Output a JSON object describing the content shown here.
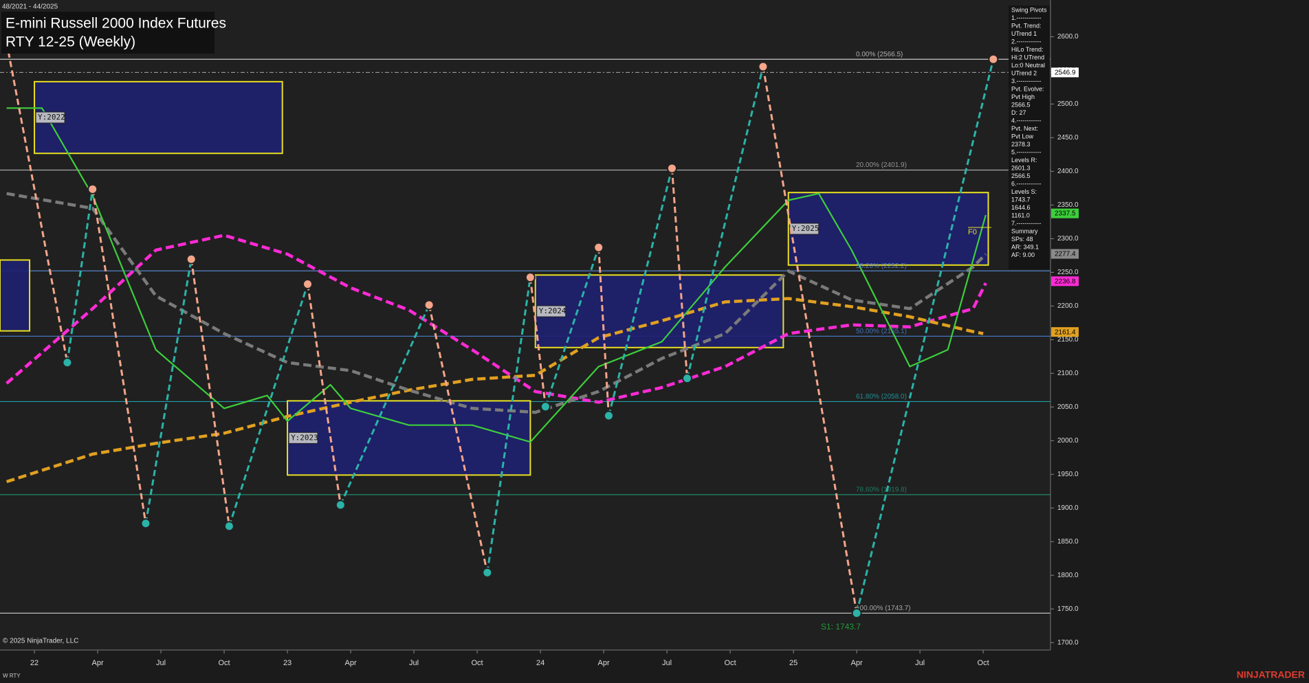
{
  "chart_data": {
    "type": "line",
    "date_range": "48/2021 - 44/2025",
    "title": "E-mini Russell 2000 Index Futures",
    "subtitle": "RTY 12-25 (Weekly)",
    "xlim": [
      2021.864,
      2026.016
    ],
    "xticks": [
      {
        "value": 2022,
        "label": "22"
      },
      {
        "value": 2022.25,
        "label": "Apr"
      },
      {
        "value": 2022.5,
        "label": "Jul"
      },
      {
        "value": 2022.75,
        "label": "Oct"
      },
      {
        "value": 2023,
        "label": "23"
      },
      {
        "value": 2023.25,
        "label": "Apr"
      },
      {
        "value": 2023.5,
        "label": "Jul"
      },
      {
        "value": 2023.75,
        "label": "Oct"
      },
      {
        "value": 2024,
        "label": "24"
      },
      {
        "value": 2024.25,
        "label": "Apr"
      },
      {
        "value": 2024.5,
        "label": "Jul"
      },
      {
        "value": 2024.75,
        "label": "Oct"
      },
      {
        "value": 2025,
        "label": "25"
      },
      {
        "value": 2025.25,
        "label": "Apr"
      },
      {
        "value": 2025.5,
        "label": "Jul"
      },
      {
        "value": 2025.75,
        "label": "Oct"
      }
    ],
    "ylim": [
      1689,
      2654.5
    ],
    "yticks": [
      {
        "value": 1700,
        "label": "1700.0"
      },
      {
        "value": 1750,
        "label": "1750.0"
      },
      {
        "value": 1800,
        "label": "1800.0"
      },
      {
        "value": 1850,
        "label": "1850.0"
      },
      {
        "value": 1900,
        "label": "1900.0"
      },
      {
        "value": 1950,
        "label": "1950.0"
      },
      {
        "value": 2000,
        "label": "2000.0"
      },
      {
        "value": 2050,
        "label": "2050.0"
      },
      {
        "value": 2100,
        "label": "2100.0"
      },
      {
        "value": 2150,
        "label": "2150.0"
      },
      {
        "value": 2200,
        "label": "2200.0"
      },
      {
        "value": 2250,
        "label": "2250.0"
      },
      {
        "value": 2300,
        "label": "2300.0"
      },
      {
        "value": 2350,
        "label": "2350.0"
      },
      {
        "value": 2400,
        "label": "2400.0"
      },
      {
        "value": 2450,
        "label": "2450.0"
      },
      {
        "value": 2500,
        "label": "2500.0"
      },
      {
        "value": 2550,
        "label": "2550.0"
      },
      {
        "value": 2600,
        "label": "2600.0"
      }
    ],
    "fib_levels": [
      {
        "label": "0.00% (2566.5)",
        "value": 2566.5,
        "color": "#c8c8c8"
      },
      {
        "label": "20.00% (2401.9)",
        "value": 2401.9,
        "color": "#a8a8a8"
      },
      {
        "label": "38.20% (2252.2)",
        "value": 2252.2,
        "color": "#5b8fdc"
      },
      {
        "label": "50.00% (2155.1)",
        "value": 2155.1,
        "color": "#4a7fd0"
      },
      {
        "label": "61.80% (2058.0)",
        "value": 2058.0,
        "color": "#1fa0a8"
      },
      {
        "label": "78.60% (1919.8)",
        "value": 1919.8,
        "color": "#1e8a6a"
      },
      {
        "label": "100.00% (1743.7)",
        "value": 1743.7,
        "color": "#bdbdbd"
      }
    ],
    "year_boxes": [
      {
        "x": [
          2021.864,
          2021.981
        ],
        "values": [
          2268.3,
          2163.0
        ]
      },
      {
        "label": "Y:2022",
        "x": [
          2022.0,
          2022.98
        ],
        "values": [
          2533.2,
          2426.7
        ]
      },
      {
        "label": "Y:2023",
        "x": [
          2023.0,
          2023.96
        ],
        "values": [
          2059.1,
          1948.9
        ]
      },
      {
        "label": "Y:2024",
        "x": [
          2023.98,
          2024.96
        ],
        "values": [
          2246.0,
          2138.3
        ]
      },
      {
        "label": "Y:2025",
        "x": [
          2024.98,
          2025.77
        ],
        "values": [
          2368.5,
          2260.8
        ]
      }
    ],
    "series": [
      {
        "color": "#ff2bd6",
        "dash": true,
        "x": [
          2021.89,
          2022.23,
          2022.48,
          2022.75,
          2023.0,
          2023.25,
          2023.48,
          2023.73,
          2023.98,
          2024.23,
          2024.48,
          2024.73,
          2024.98,
          2025.23,
          2025.46,
          2025.71,
          2025.76
        ],
        "values": [
          2085,
          2196,
          2283,
          2305,
          2277,
          2227,
          2194,
          2135,
          2073,
          2057,
          2079,
          2110,
          2159,
          2172,
          2169,
          2196,
          2234
        ]
      },
      {
        "color": "#e0a020",
        "dash": true,
        "x": [
          2021.89,
          2022.23,
          2022.48,
          2022.75,
          2023.0,
          2023.25,
          2023.48,
          2023.73,
          2023.98,
          2024.23,
          2024.48,
          2024.73,
          2024.98,
          2025.23,
          2025.46,
          2025.71,
          2025.75
        ],
        "values": [
          1939,
          1980,
          1996,
          2011,
          2036,
          2057,
          2075,
          2091,
          2097,
          2153,
          2178,
          2206,
          2211,
          2199,
          2184,
          2162,
          2159
        ]
      },
      {
        "color": "#7a7a7a",
        "dash": true,
        "x": [
          2021.89,
          2022.23,
          2022.48,
          2022.75,
          2023.0,
          2023.25,
          2023.48,
          2023.73,
          2023.98,
          2024.23,
          2024.48,
          2024.73,
          2024.98,
          2025.23,
          2025.46,
          2025.71,
          2025.76
        ],
        "values": [
          2367,
          2345,
          2215,
          2159,
          2116,
          2104,
          2075,
          2048,
          2042,
          2073,
          2122,
          2159,
          2252,
          2209,
          2196,
          2258,
          2277
        ]
      },
      {
        "color": "#3ccf3c",
        "dash": false,
        "x": [
          2021.89,
          2022.03,
          2022.23,
          2022.48,
          2022.75,
          2022.92,
          2023.0,
          2023.17,
          2023.25,
          2023.48,
          2023.73,
          2023.96,
          2024.23,
          2024.48,
          2024.73,
          2024.98,
          2025.1,
          2025.23,
          2025.46,
          2025.61,
          2025.76
        ],
        "values": [
          2494,
          2494,
          2364,
          2135,
          2048,
          2067,
          2029,
          2083,
          2048,
          2023,
          2023,
          1998,
          2110,
          2147,
          2258,
          2357,
          2367,
          2283,
          2110,
          2135,
          2335
        ]
      }
    ],
    "swing_pivots": {
      "x": [
        2021.89,
        2022.13,
        2022.23,
        2022.44,
        2022.62,
        2022.77,
        2023.08,
        2023.21,
        2023.56,
        2023.79,
        2023.96,
        2024.02,
        2024.23,
        2024.27,
        2024.52,
        2024.58,
        2024.88,
        2025.25,
        2025.79
      ],
      "values": [
        2592,
        2116,
        2373.5,
        1877,
        2269.5,
        1873,
        2232.5,
        1904.5,
        2201.5,
        1804,
        2242.5,
        2050.5,
        2287,
        2037,
        2404.5,
        2092.5,
        2555.5,
        1743.7,
        2566.5
      ],
      "up_color": "#2bb3a8",
      "down_color": "#f4a58a"
    },
    "price_markers": [
      {
        "value": 2546.9,
        "color": "#ffffff"
      },
      {
        "value": 2337.5,
        "color": "#3ccf3c"
      },
      {
        "value": 2277.4,
        "color": "#8a8a8a"
      },
      {
        "value": 2236.8,
        "color": "#ff2bd6"
      },
      {
        "value": 2161.4,
        "color": "#e0a020"
      }
    ],
    "support_label": "S1: 1743.7",
    "f_label": "F0",
    "info_panel": [
      "Swing Pivots",
      "1.------------",
      "Pvt. Trend:",
      "UTrend 1",
      "2.------------",
      "HiLo Trend:",
      "Hi:2 UTrend",
      "Lo:0 Neutral",
      "UTrend 2",
      "3.------------",
      "Pvt. Evolve:",
      "Pvt High",
      "2566.5",
      "D: 27",
      "4.------------",
      "Pvt. Next:",
      "Pvt Low",
      "2378.3",
      "5.------------",
      "Levels R:",
      "2601.3",
      "2566.5",
      "6.------------",
      "Levels S:",
      "1743.7",
      "1644.6",
      "1161.0",
      "7.------------",
      "Summary",
      "SPs: 48",
      "AR: 349.1",
      "AF: 9.00"
    ],
    "copyright": "© 2025 NinjaTrader, LLC",
    "instrument": "W RTY",
    "brand": "NINJATRADER"
  }
}
